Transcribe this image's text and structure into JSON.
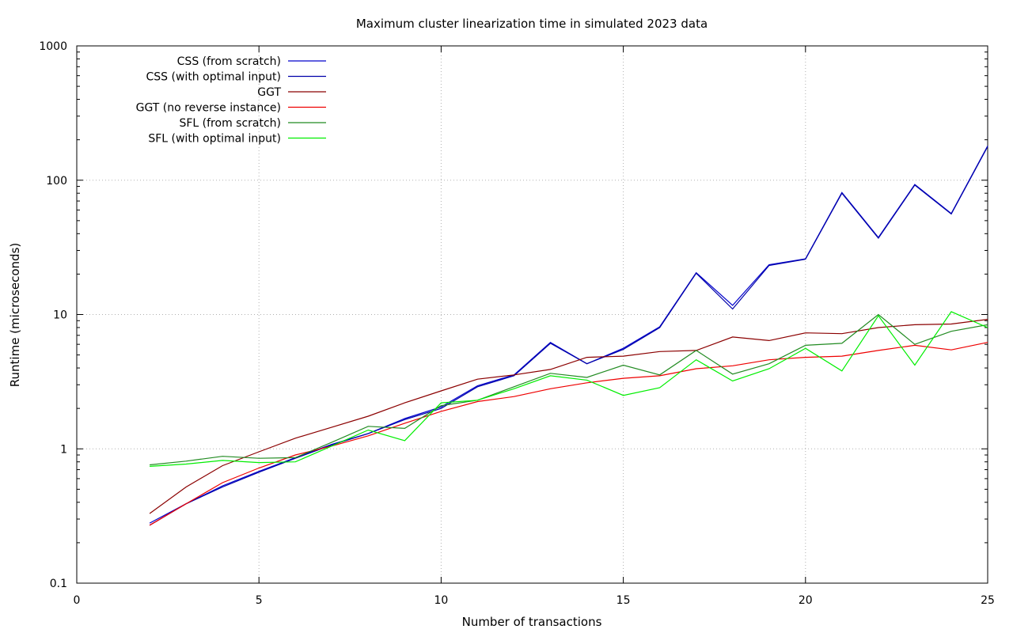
{
  "chart_data": {
    "type": "line",
    "title": "Maximum cluster linearization time in simulated 2023 data",
    "xlabel": "Number of transactions",
    "ylabel": "Runtime (microseconds)",
    "xlim": [
      0,
      25
    ],
    "ylim": [
      0.1,
      1000
    ],
    "yscale": "log",
    "grid": true,
    "legend_position": "top-left",
    "x_ticks": [
      0,
      5,
      10,
      15,
      20,
      25
    ],
    "y_ticks": [
      0.1,
      1,
      10,
      100,
      1000
    ],
    "x_tick_labels": [
      "0",
      "5",
      "10",
      "15",
      "20",
      "25"
    ],
    "y_tick_labels": [
      "0.1",
      "1",
      "10",
      "100",
      "1000"
    ],
    "x": [
      2,
      3,
      4,
      5,
      6,
      7,
      8,
      9,
      10,
      11,
      12,
      13,
      14,
      15,
      16,
      17,
      18,
      19,
      20,
      21,
      22,
      23,
      24,
      25
    ],
    "series": [
      {
        "name": "CSS (from scratch)",
        "color": "#0000cc",
        "values": [
          0.28,
          0.39,
          0.53,
          0.68,
          0.86,
          1.08,
          1.3,
          1.68,
          2.05,
          2.95,
          3.55,
          6.2,
          4.3,
          5.6,
          8.1,
          20.5,
          11.7,
          23.5,
          26.0,
          81.0,
          37.5,
          93.0,
          56.5,
          180.0
        ]
      },
      {
        "name": "CSS (with optimal input)",
        "color": "#0000aa",
        "values": [
          0.27,
          0.39,
          0.52,
          0.67,
          0.85,
          1.07,
          1.3,
          1.65,
          2.0,
          2.9,
          3.5,
          6.1,
          4.3,
          5.5,
          8.0,
          20.3,
          11.0,
          23.2,
          25.8,
          80.0,
          37.0,
          92.0,
          56.0,
          178.0
        ]
      },
      {
        "name": "GGT",
        "color": "#8b0000",
        "values": [
          0.33,
          0.52,
          0.75,
          0.95,
          1.2,
          1.45,
          1.75,
          2.2,
          2.7,
          3.3,
          3.55,
          3.9,
          4.8,
          4.9,
          5.3,
          5.4,
          6.8,
          6.4,
          7.3,
          7.2,
          8.0,
          8.4,
          8.5,
          9.2
        ]
      },
      {
        "name": "GGT (no reverse instance)",
        "color": "#ee0000",
        "values": [
          0.27,
          0.39,
          0.56,
          0.72,
          0.9,
          1.05,
          1.25,
          1.55,
          1.9,
          2.25,
          2.45,
          2.8,
          3.1,
          3.35,
          3.5,
          3.95,
          4.15,
          4.6,
          4.8,
          4.9,
          5.4,
          5.9,
          5.45,
          6.2
        ]
      },
      {
        "name": "SFL (from scratch)",
        "color": "#228b22",
        "values": [
          0.76,
          0.81,
          0.88,
          0.85,
          0.86,
          1.12,
          1.47,
          1.42,
          2.1,
          2.3,
          2.9,
          3.65,
          3.4,
          4.2,
          3.55,
          5.4,
          3.6,
          4.3,
          5.9,
          6.1,
          10.0,
          6.0,
          7.5,
          8.4
        ]
      },
      {
        "name": "SFL (with optimal input)",
        "color": "#00ee00",
        "values": [
          0.74,
          0.77,
          0.82,
          0.79,
          0.8,
          1.05,
          1.38,
          1.15,
          2.2,
          2.3,
          2.8,
          3.5,
          3.25,
          2.5,
          2.85,
          4.6,
          3.2,
          3.95,
          5.6,
          3.8,
          9.8,
          4.2,
          10.5,
          8.0
        ]
      }
    ]
  }
}
